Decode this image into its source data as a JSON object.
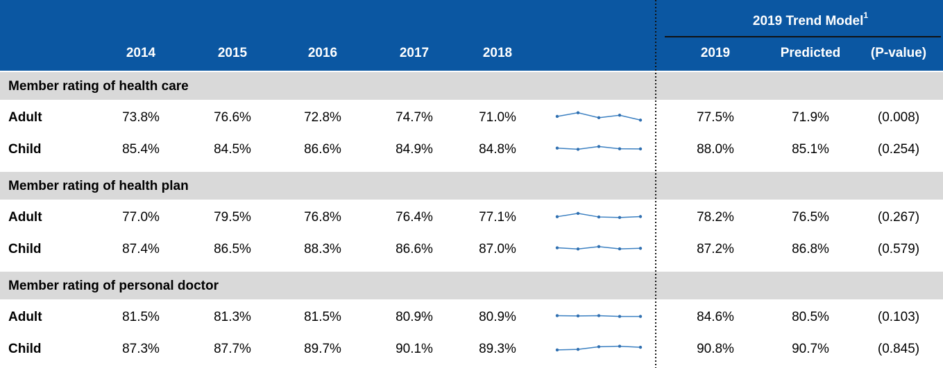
{
  "header": {
    "trend_model": "2019 Trend Model",
    "trend_note": "1",
    "years": [
      "2014",
      "2015",
      "2016",
      "2017",
      "2018"
    ],
    "right": [
      "2019",
      "Predicted",
      "(P-value)"
    ]
  },
  "sections": [
    {
      "title": "Member rating of health care",
      "rows": [
        {
          "label": "Adult",
          "values": [
            73.8,
            76.6,
            72.8,
            74.7,
            71.0
          ],
          "value_labels": [
            "73.8%",
            "76.6%",
            "72.8%",
            "74.7%",
            "71.0%"
          ],
          "y2019": "77.5%",
          "predicted": "71.9%",
          "p_value": "(0.008)"
        },
        {
          "label": "Child",
          "values": [
            85.4,
            84.5,
            86.6,
            84.9,
            84.8
          ],
          "value_labels": [
            "85.4%",
            "84.5%",
            "86.6%",
            "84.9%",
            "84.8%"
          ],
          "y2019": "88.0%",
          "predicted": "85.1%",
          "p_value": "(0.254)"
        }
      ]
    },
    {
      "title": "Member rating of health plan",
      "rows": [
        {
          "label": "Adult",
          "values": [
            77.0,
            79.5,
            76.8,
            76.4,
            77.1
          ],
          "value_labels": [
            "77.0%",
            "79.5%",
            "76.8%",
            "76.4%",
            "77.1%"
          ],
          "y2019": "78.2%",
          "predicted": "76.5%",
          "p_value": "(0.267)"
        },
        {
          "label": "Child",
          "values": [
            87.4,
            86.5,
            88.3,
            86.6,
            87.0
          ],
          "value_labels": [
            "87.4%",
            "86.5%",
            "88.3%",
            "86.6%",
            "87.0%"
          ],
          "y2019": "87.2%",
          "predicted": "86.8%",
          "p_value": "(0.579)"
        }
      ]
    },
    {
      "title": "Member rating of personal doctor",
      "rows": [
        {
          "label": "Adult",
          "values": [
            81.5,
            81.3,
            81.5,
            80.9,
            80.9
          ],
          "value_labels": [
            "81.5%",
            "81.3%",
            "81.5%",
            "80.9%",
            "80.9%"
          ],
          "y2019": "84.6%",
          "predicted": "80.5%",
          "p_value": "(0.103)"
        },
        {
          "label": "Child",
          "values": [
            87.3,
            87.7,
            89.7,
            90.1,
            89.3
          ],
          "value_labels": [
            "87.3%",
            "87.7%",
            "89.7%",
            "90.1%",
            "89.3%"
          ],
          "y2019": "90.8%",
          "predicted": "90.7%",
          "p_value": "(0.845)"
        }
      ]
    }
  ]
}
